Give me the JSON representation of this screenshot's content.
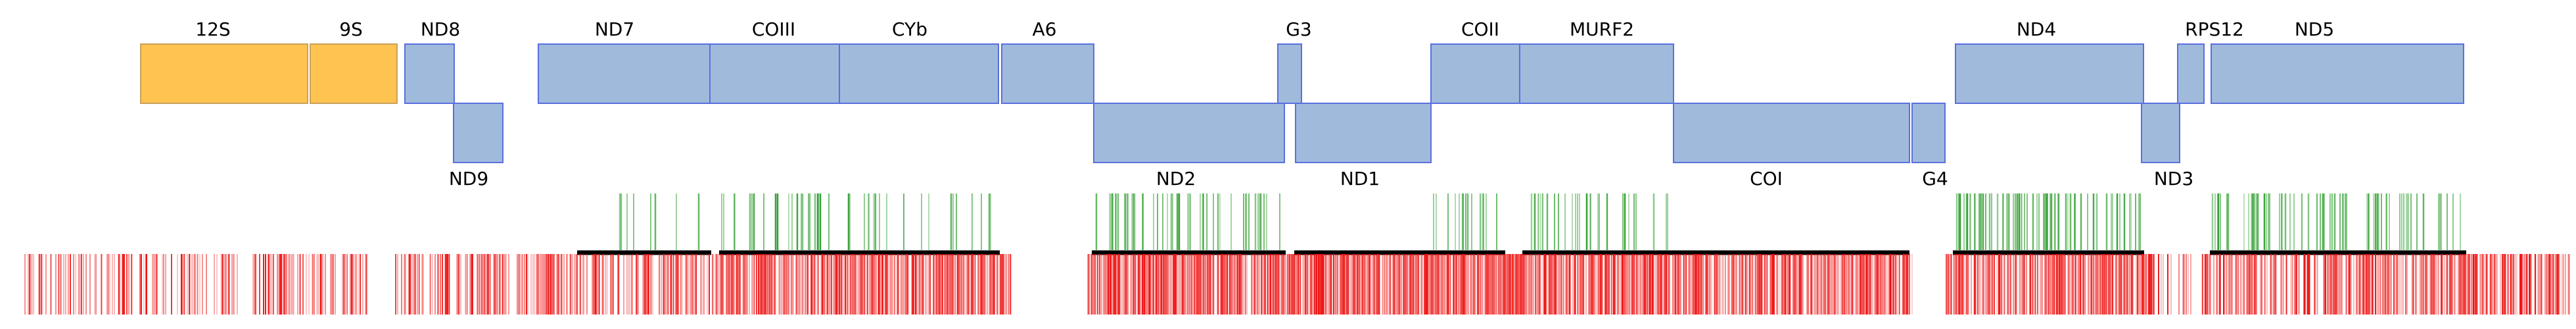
{
  "colors": {
    "rrna": "#FFC34F",
    "gene": "#A0BADC",
    "edge": "#5A6FE0",
    "green_tick": "#2E9E2E",
    "red_tick": "#EE1111",
    "coverage_bar": "#000000"
  },
  "genes_top": [
    {
      "label": "12S",
      "kind": "rrna"
    },
    {
      "label": "9S",
      "kind": "rrna"
    },
    {
      "label": "ND8",
      "kind": "gene"
    },
    {
      "label": "ND7",
      "kind": "gene"
    },
    {
      "label": "COIII",
      "kind": "gene"
    },
    {
      "label": "CYb",
      "kind": "gene"
    },
    {
      "label": "A6",
      "kind": "gene"
    },
    {
      "label": "G3",
      "kind": "gene"
    },
    {
      "label": "COII",
      "kind": "gene"
    },
    {
      "label": "MURF2",
      "kind": "gene"
    },
    {
      "label": "ND4",
      "kind": "gene"
    },
    {
      "label": "RPS12",
      "kind": "gene"
    },
    {
      "label": "ND5",
      "kind": "gene"
    }
  ],
  "genes_bottom": [
    {
      "label": "ND9",
      "kind": "gene"
    },
    {
      "label": "ND2",
      "kind": "gene"
    },
    {
      "label": "ND1",
      "kind": "gene"
    },
    {
      "label": "COI",
      "kind": "gene"
    },
    {
      "label": "G4",
      "kind": "gene"
    },
    {
      "label": "ND3",
      "kind": "gene"
    }
  ]
}
